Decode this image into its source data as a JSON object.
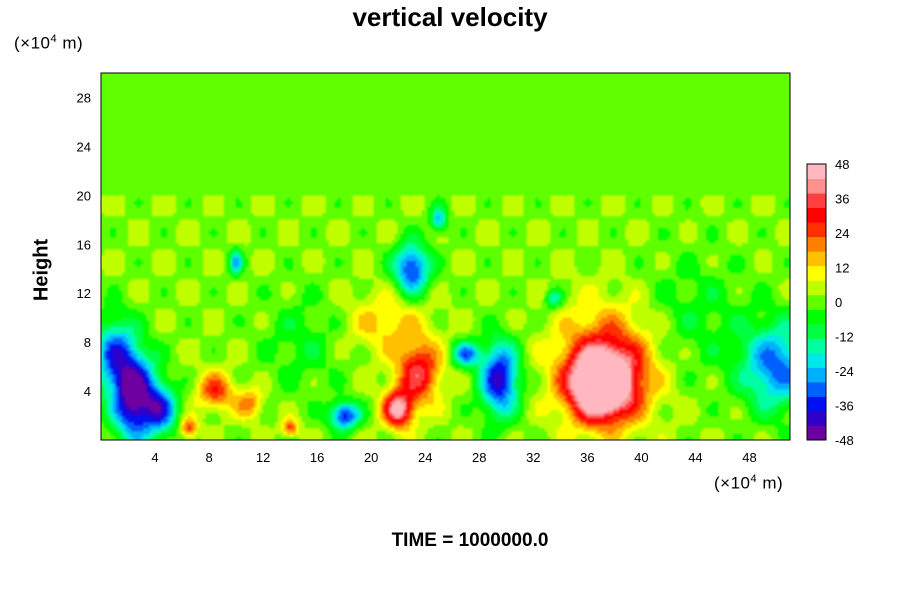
{
  "chart_data": {
    "type": "heatmap",
    "title": "vertical velocity",
    "ylabel": "Height",
    "x_unit_parts": [
      "(×10",
      "4",
      " m)"
    ],
    "y_unit_parts": [
      "(×10",
      "4",
      " m)"
    ],
    "footer": "TIME = 1000000.0",
    "xlim": [
      0,
      51
    ],
    "ylim": [
      0,
      30
    ],
    "x_ticks": [
      4,
      8,
      12,
      16,
      20,
      24,
      28,
      32,
      36,
      40,
      44,
      48
    ],
    "y_ticks": [
      4,
      8,
      12,
      16,
      20,
      24,
      28
    ],
    "colorbar": {
      "ticks": [
        48,
        36,
        24,
        12,
        0,
        -12,
        -24,
        -36,
        -48
      ],
      "range": [
        -48,
        48
      ],
      "colors": [
        "#6e00a0",
        "#3000c8",
        "#0010f0",
        "#0060ff",
        "#00b0ff",
        "#00e8e8",
        "#00ffa0",
        "#00ff40",
        "#00ff00",
        "#60ff00",
        "#c0ff00",
        "#ffff00",
        "#ffc000",
        "#ff8000",
        "#ff3000",
        "#ff0000",
        "#ff4040",
        "#ff9090",
        "#ffb8c0"
      ]
    },
    "background_value": 2,
    "features": [
      {
        "x": 2.5,
        "y": 3.5,
        "value": -50,
        "sx": 1.6,
        "sy": 3.5
      },
      {
        "x": 1.0,
        "y": 7.0,
        "value": -30,
        "sx": 1.5,
        "sy": 3.0
      },
      {
        "x": 4.5,
        "y": 2.5,
        "value": -30,
        "sx": 1.2,
        "sy": 2.0
      },
      {
        "x": 8.5,
        "y": 4.0,
        "value": 24,
        "sx": 1.3,
        "sy": 1.5
      },
      {
        "x": 11.0,
        "y": 3.0,
        "value": 18,
        "sx": 1.0,
        "sy": 1.2
      },
      {
        "x": 6.5,
        "y": 1.0,
        "value": 25,
        "sx": 0.6,
        "sy": 0.8
      },
      {
        "x": 14.0,
        "y": 1.0,
        "value": 24,
        "sx": 0.6,
        "sy": 0.7
      },
      {
        "x": 18.0,
        "y": 2.0,
        "value": -38,
        "sx": 1.1,
        "sy": 1.1
      },
      {
        "x": 22.0,
        "y": 2.5,
        "value": 42,
        "sx": 1.1,
        "sy": 1.5
      },
      {
        "x": 23.5,
        "y": 5.5,
        "value": 32,
        "sx": 1.6,
        "sy": 2.5
      },
      {
        "x": 21.0,
        "y": 9.5,
        "value": 12,
        "sx": 3.0,
        "sy": 2.5
      },
      {
        "x": 29.5,
        "y": 5.0,
        "value": -42,
        "sx": 1.4,
        "sy": 3.0
      },
      {
        "x": 27.0,
        "y": 7.0,
        "value": -30,
        "sx": 1.0,
        "sy": 1.0
      },
      {
        "x": 23.0,
        "y": 14.0,
        "value": -38,
        "sx": 1.3,
        "sy": 2.0
      },
      {
        "x": 25.0,
        "y": 18.0,
        "value": -26,
        "sx": 0.6,
        "sy": 1.0
      },
      {
        "x": 37.0,
        "y": 4.5,
        "value": 60,
        "sx": 2.2,
        "sy": 2.6
      },
      {
        "x": 37.5,
        "y": 6.0,
        "value": 30,
        "sx": 3.6,
        "sy": 4.5
      },
      {
        "x": 50.0,
        "y": 6.0,
        "value": -32,
        "sx": 2.5,
        "sy": 3.5
      },
      {
        "x": 10.0,
        "y": 14.5,
        "value": -24,
        "sx": 0.5,
        "sy": 1.0
      },
      {
        "x": 33.5,
        "y": 11.5,
        "value": -20,
        "sx": 0.6,
        "sy": 0.8
      },
      {
        "x": 15.0,
        "y": 8.0,
        "value": -8,
        "sx": 3.0,
        "sy": 4.0
      },
      {
        "x": 44.0,
        "y": 10.0,
        "value": -8,
        "sx": 4.0,
        "sy": 5.0
      }
    ]
  }
}
